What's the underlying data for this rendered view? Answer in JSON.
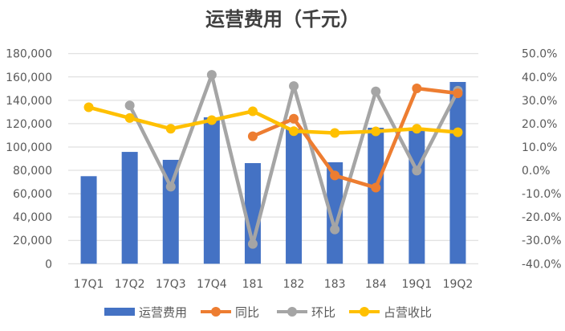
{
  "chart_data": {
    "type": "bar+line",
    "title": "运营费用（千元）",
    "categories": [
      "17Q1",
      "17Q2",
      "17Q3",
      "17Q4",
      "181",
      "182",
      "183",
      "184",
      "19Q1",
      "19Q2"
    ],
    "left_axis": {
      "ylim": [
        0,
        180000
      ],
      "ticks": [
        "0",
        "20,000",
        "40,000",
        "60,000",
        "80,000",
        "100,000",
        "120,000",
        "140,000",
        "160,000",
        "180,000"
      ]
    },
    "right_axis": {
      "ylim": [
        -40,
        50
      ],
      "ticks": [
        "-40.0%",
        "-30.0%",
        "-20.0%",
        "-10.0%",
        "0.0%",
        "10.0%",
        "20.0%",
        "30.0%",
        "40.0%",
        "50.0%"
      ]
    },
    "grid": true,
    "legend_position": "bottom",
    "series": [
      {
        "name": "运营费用",
        "type": "bar",
        "axis": "left",
        "color": "#4472C4",
        "values": [
          75000,
          95800,
          89000,
          125400,
          86200,
          115600,
          86900,
          116500,
          115800,
          155700
        ]
      },
      {
        "name": "同比",
        "type": "line",
        "axis": "right",
        "color": "#ED7D31",
        "values": [
          null,
          null,
          null,
          null,
          14.6,
          22.1,
          -2.2,
          -7.4,
          35.1,
          33.0
        ]
      },
      {
        "name": "环比",
        "type": "line",
        "axis": "right",
        "color": "#A5A5A5",
        "values": [
          null,
          27.8,
          -7.0,
          40.9,
          -31.5,
          36.1,
          -25.3,
          33.8,
          -0.1,
          34.1
        ]
      },
      {
        "name": "占营收比",
        "type": "line",
        "axis": "right",
        "color": "#FFC000",
        "values": [
          27.0,
          22.4,
          17.8,
          21.5,
          25.3,
          16.8,
          16.0,
          16.7,
          17.8,
          16.3
        ]
      }
    ]
  }
}
